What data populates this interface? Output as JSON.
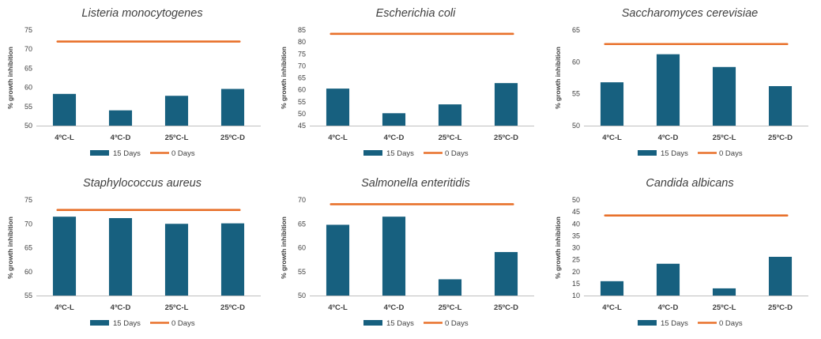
{
  "colors": {
    "bar": "#17607f",
    "line": "#e8702a",
    "axis": "#bfbfbf",
    "text": "#404040"
  },
  "legend": {
    "bar_label": "15 Days",
    "line_label": "0 Days",
    "placement": "bottom"
  },
  "chart_data": [
    {
      "type": "bar",
      "title": "Listeria monocytogenes",
      "ylabel": "% growth inhibition",
      "categories": [
        "4ºC-L",
        "4ºC-D",
        "25ºC-L",
        "25ºC-D"
      ],
      "ylim": [
        50,
        75
      ],
      "yticks": [
        50,
        55,
        60,
        65,
        70,
        75
      ],
      "series": [
        {
          "name": "15 Days",
          "type": "bar",
          "values": [
            58.3,
            54.0,
            57.8,
            59.6
          ]
        },
        {
          "name": "0 Days",
          "type": "line",
          "values": [
            72,
            72,
            72,
            72
          ]
        }
      ]
    },
    {
      "type": "bar",
      "title": "Escherichia coli",
      "ylabel": "% growth inhibition",
      "categories": [
        "4ºC-L",
        "4ºC-D",
        "25ºC-L",
        "25ºC-D"
      ],
      "ylim": [
        45,
        85
      ],
      "yticks": [
        45,
        50,
        55,
        60,
        65,
        70,
        75,
        80,
        85
      ],
      "series": [
        {
          "name": "15 Days",
          "type": "bar",
          "values": [
            60.5,
            50.2,
            53.9,
            62.8
          ]
        },
        {
          "name": "0 Days",
          "type": "line",
          "values": [
            83.4,
            83.4,
            83.4,
            83.4
          ]
        }
      ]
    },
    {
      "type": "bar",
      "title": "Saccharomyces cerevisiae",
      "ylabel": "% growth inhibition",
      "categories": [
        "4ºC-L",
        "4ºC-D",
        "25ºC-L",
        "25ºC-D"
      ],
      "ylim": [
        50,
        65
      ],
      "yticks": [
        50,
        55,
        60,
        65
      ],
      "series": [
        {
          "name": "15 Days",
          "type": "bar",
          "values": [
            56.8,
            61.2,
            59.2,
            56.2
          ]
        },
        {
          "name": "0 Days",
          "type": "line",
          "values": [
            62.8,
            62.8,
            62.8,
            62.8
          ]
        }
      ]
    },
    {
      "type": "bar",
      "title": "Staphylococcus aureus",
      "ylabel": "% growth inhibition",
      "categories": [
        "4ºC-L",
        "4ºC-D",
        "25ºC-L",
        "25ºC-D"
      ],
      "ylim": [
        55,
        75
      ],
      "yticks": [
        55,
        60,
        65,
        70,
        75
      ],
      "series": [
        {
          "name": "15 Days",
          "type": "bar",
          "values": [
            71.5,
            71.2,
            70.0,
            70.1
          ]
        },
        {
          "name": "0 Days",
          "type": "line",
          "values": [
            72.9,
            72.9,
            72.9,
            72.9
          ]
        }
      ]
    },
    {
      "type": "bar",
      "title": "Salmonella enteritidis",
      "ylabel": "% growth inhibition",
      "categories": [
        "4ºC-L",
        "4ºC-D",
        "25ºC-L",
        "25ºC-D"
      ],
      "ylim": [
        50,
        70
      ],
      "yticks": [
        50,
        55,
        60,
        65,
        70
      ],
      "series": [
        {
          "name": "15 Days",
          "type": "bar",
          "values": [
            64.8,
            66.5,
            53.4,
            59.1
          ]
        },
        {
          "name": "0 Days",
          "type": "line",
          "values": [
            69.1,
            69.1,
            69.1,
            69.1
          ]
        }
      ]
    },
    {
      "type": "bar",
      "title": "Candida albicans",
      "ylabel": "% growth inhibition",
      "categories": [
        "4ºC-L",
        "4ºC-D",
        "25ºC-L",
        "25ºC-D"
      ],
      "ylim": [
        10,
        50
      ],
      "yticks": [
        10,
        15,
        20,
        25,
        30,
        35,
        40,
        45,
        50
      ],
      "series": [
        {
          "name": "15 Days",
          "type": "bar",
          "values": [
            16.0,
            23.3,
            13.0,
            26.2
          ]
        },
        {
          "name": "0 Days",
          "type": "line",
          "values": [
            43.5,
            43.5,
            43.5,
            43.5
          ]
        }
      ]
    }
  ]
}
